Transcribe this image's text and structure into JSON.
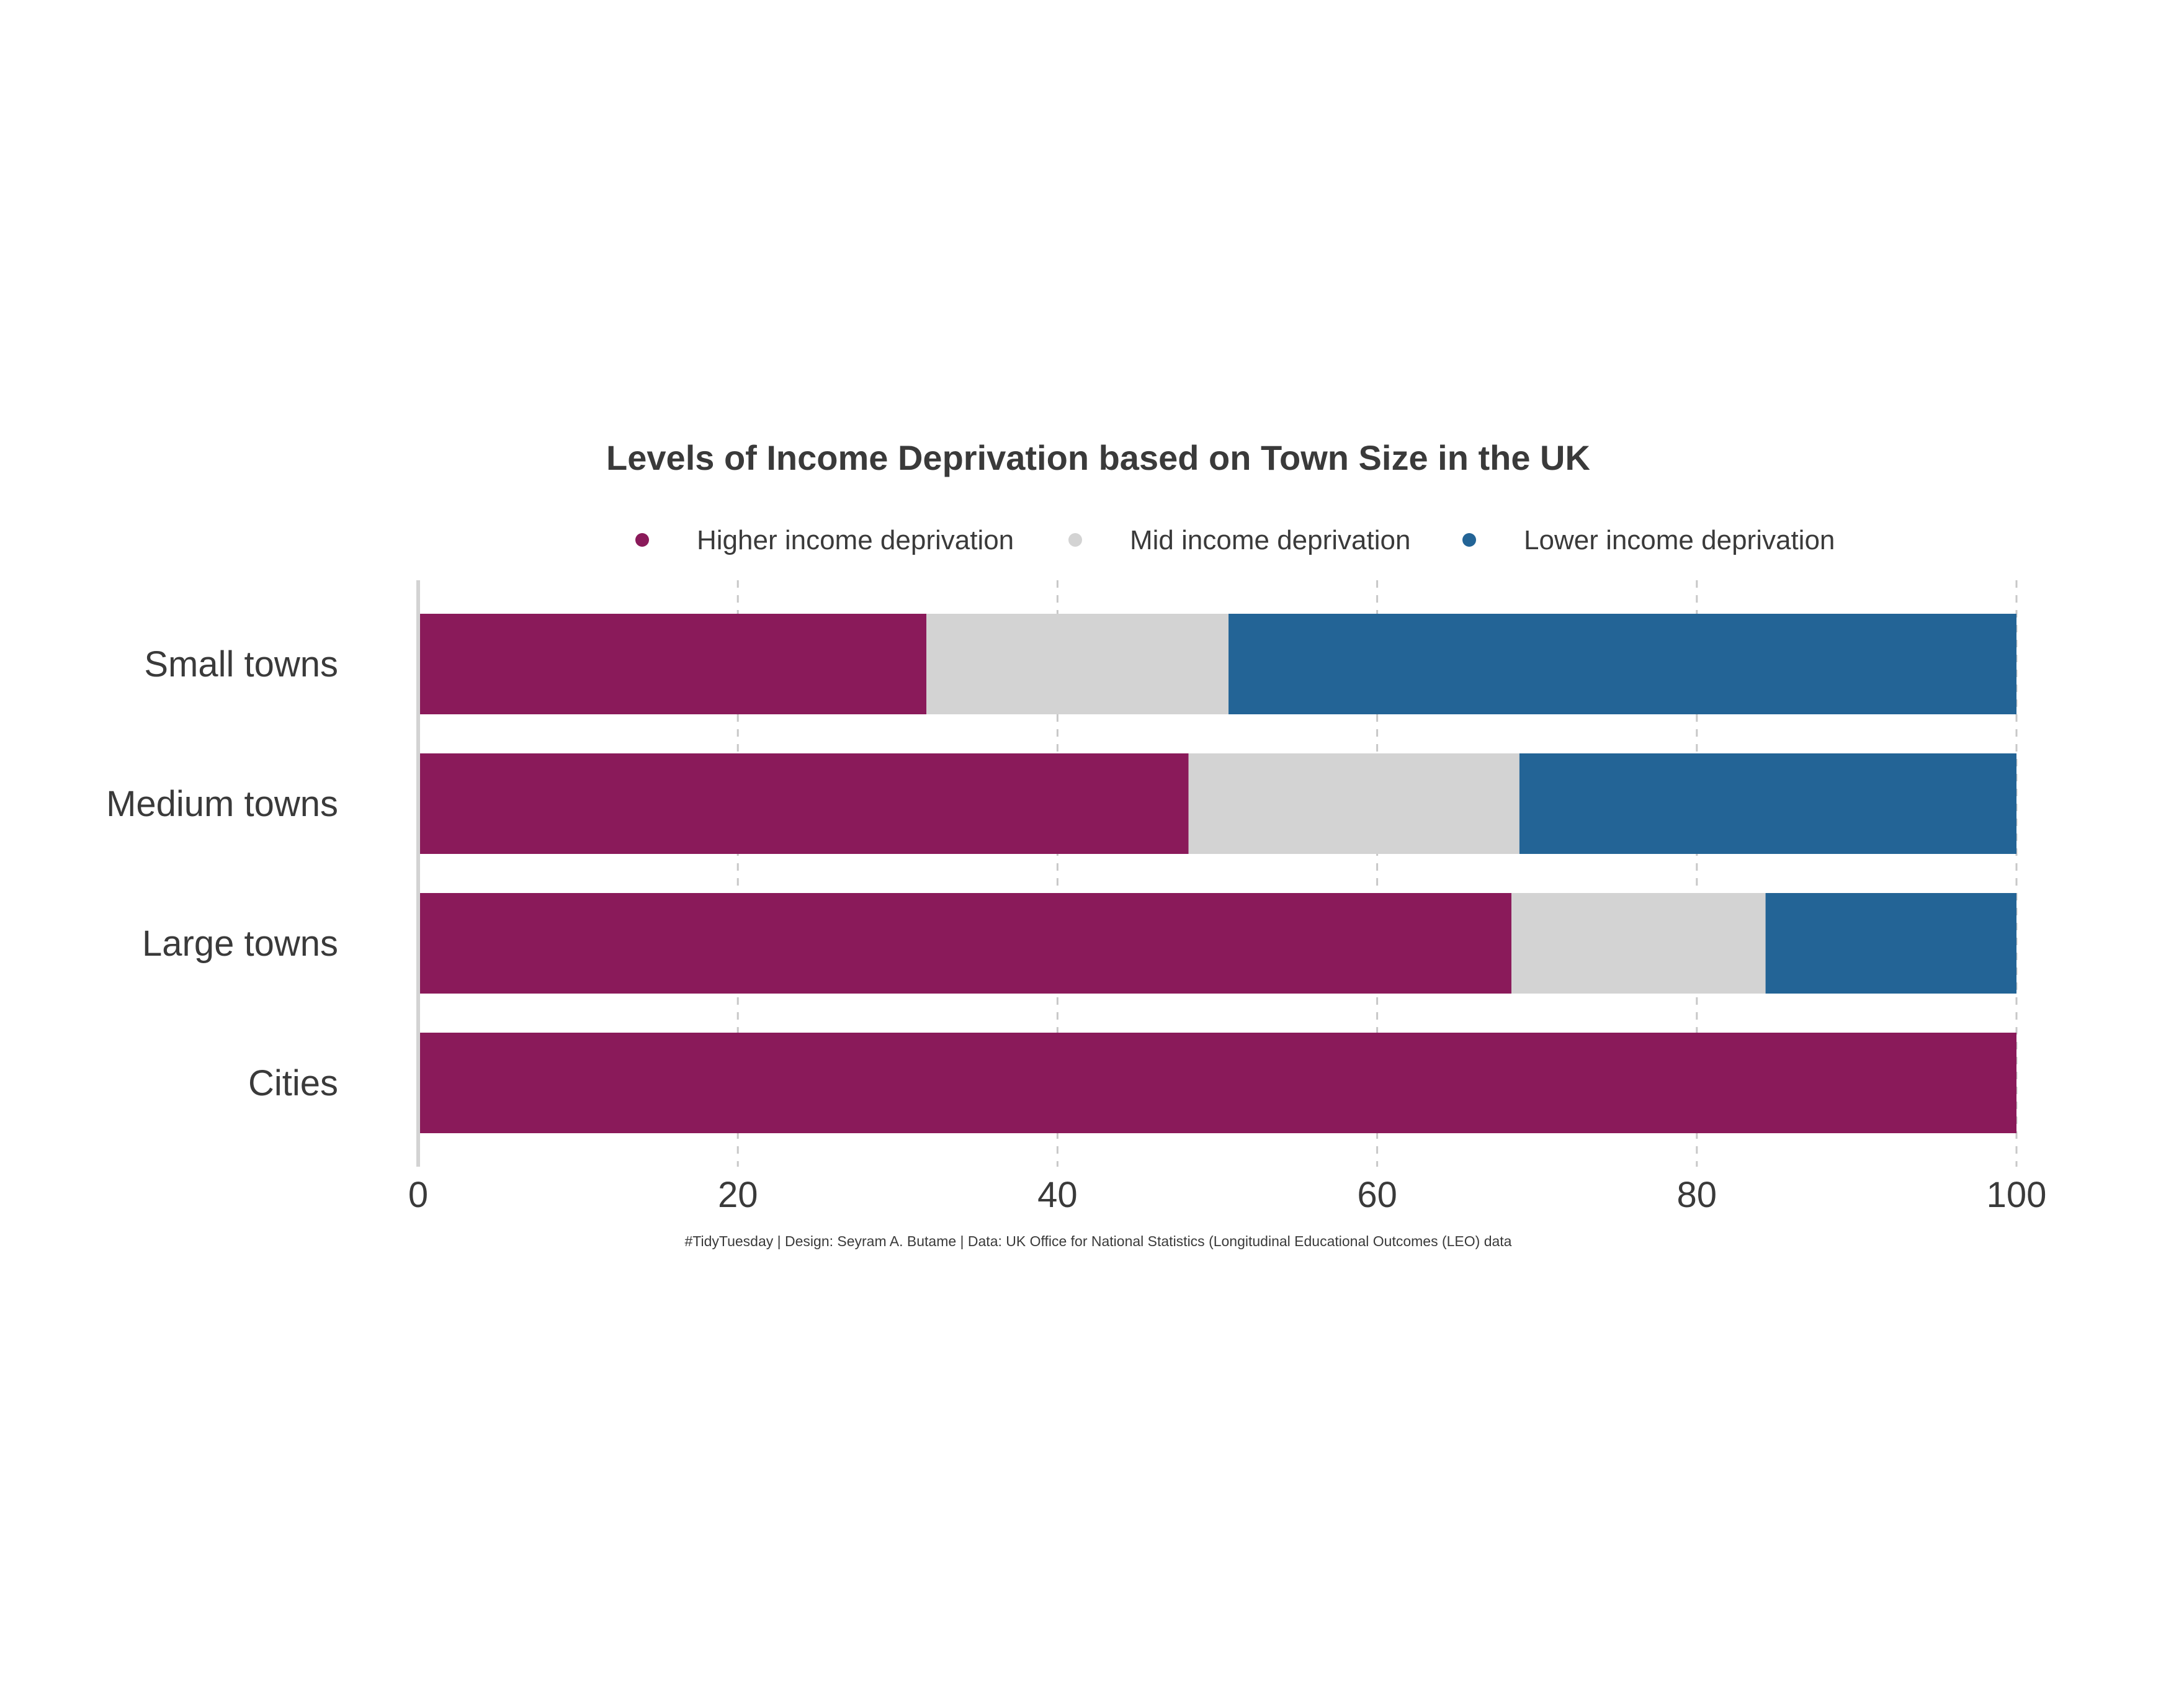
{
  "chart_data": {
    "type": "bar",
    "orientation": "horizontal",
    "stacked": true,
    "title": "Levels of Income Deprivation based on Town Size in the UK",
    "caption": "#TidyTuesday | Design: Seyram A. Butame | Data:  UK Office for National Statistics (Longitudinal Educational Outcomes (LEO) data",
    "categories": [
      "Small towns",
      "Medium towns",
      "Large towns",
      "Cities"
    ],
    "series": [
      {
        "name": "Higher income deprivation",
        "color": "#8a1a5a",
        "values": [
          31.8,
          48.2,
          68.4,
          100
        ]
      },
      {
        "name": "Mid income deprivation",
        "color": "#d3d3d3",
        "values": [
          18.9,
          20.7,
          15.9,
          0
        ]
      },
      {
        "name": "Lower income deprivation",
        "color": "#236496",
        "values": [
          49.3,
          31.1,
          15.7,
          0
        ]
      }
    ],
    "xlim": [
      0,
      100
    ],
    "x_ticks": [
      0,
      20,
      40,
      60,
      80,
      100
    ],
    "xlabel": "",
    "ylabel": "",
    "grid": "vertical dashed",
    "legend_position": "top"
  }
}
